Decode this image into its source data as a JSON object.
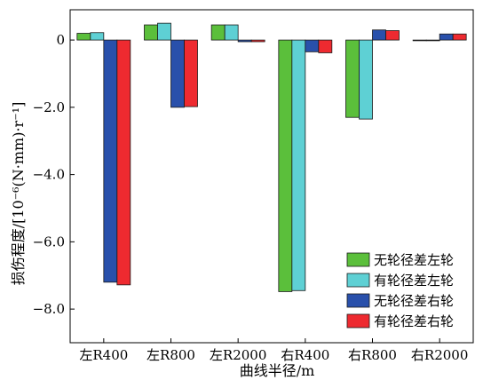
{
  "chart_data": {
    "type": "bar",
    "title": "",
    "xlabel": "曲线半径/m",
    "ylabel": "损伤程度/[10⁻⁶(N·mm)·r⁻¹]",
    "categories": [
      "左R400",
      "左R800",
      "左R2000",
      "右R400",
      "右R800",
      "右R2000"
    ],
    "ylim": [
      -9.0,
      0.9
    ],
    "yticks": [
      0,
      -2.0,
      -4.0,
      -6.0,
      -8.0
    ],
    "ytick_labels": [
      "0",
      "−2.0",
      "−4.0",
      "−6.0",
      "−8.0"
    ],
    "grid": false,
    "legend_position": "bottom-right",
    "series": [
      {
        "name": "无轮径差左轮",
        "color": "#5bbf3b",
        "values": [
          0.2,
          0.45,
          0.45,
          -7.48,
          -2.3,
          -0.02
        ]
      },
      {
        "name": "有轮径差左轮",
        "color": "#5ed0d4",
        "values": [
          0.22,
          0.5,
          0.45,
          -7.45,
          -2.35,
          -0.02
        ]
      },
      {
        "name": "无轮径差右轮",
        "color": "#2950ab",
        "values": [
          -7.2,
          -2.0,
          -0.05,
          -0.35,
          0.3,
          0.18
        ]
      },
      {
        "name": "有轮径差右轮",
        "color": "#ee2a30",
        "values": [
          -7.28,
          -1.98,
          -0.05,
          -0.38,
          0.28,
          0.18
        ]
      }
    ]
  }
}
